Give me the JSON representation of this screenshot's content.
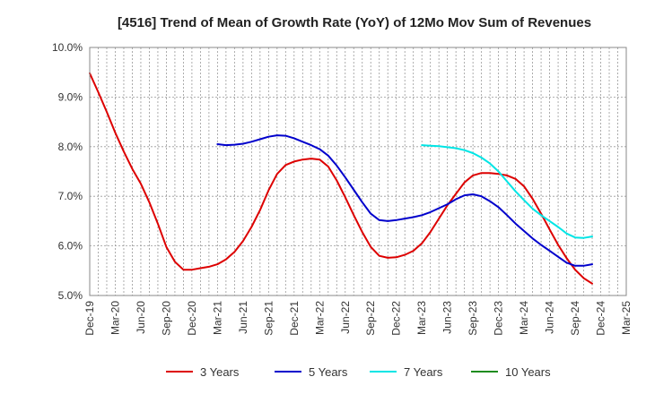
{
  "chart_data": {
    "type": "line",
    "title": "[4516]  Trend of Mean of Growth Rate (YoY) of 12Mo Mov Sum of Revenues",
    "xlabel": "",
    "ylabel": "",
    "ylim": [
      5.0,
      10.0
    ],
    "y_ticks": [
      5.0,
      6.0,
      7.0,
      8.0,
      9.0,
      10.0
    ],
    "y_tick_labels": [
      "5.0%",
      "6.0%",
      "7.0%",
      "8.0%",
      "9.0%",
      "10.0%"
    ],
    "x_tick_labels": [
      "Dec-19",
      "Mar-20",
      "Jun-20",
      "Sep-20",
      "Dec-20",
      "Mar-21",
      "Jun-21",
      "Sep-21",
      "Dec-21",
      "Mar-22",
      "Jun-22",
      "Sep-22",
      "Dec-22",
      "Mar-23",
      "Jun-23",
      "Sep-23",
      "Dec-23",
      "Mar-24",
      "Jun-24",
      "Sep-24",
      "Dec-24",
      "Mar-25"
    ],
    "grid": true,
    "legend_position": "bottom",
    "series": [
      {
        "name": "3 Years",
        "color": "#dd0000",
        "start_month_index": 0,
        "values": [
          9.48,
          9.1,
          8.7,
          8.28,
          7.9,
          7.55,
          7.25,
          6.88,
          6.45,
          5.98,
          5.68,
          5.52,
          5.52,
          5.55,
          5.58,
          5.63,
          5.73,
          5.88,
          6.1,
          6.38,
          6.72,
          7.12,
          7.45,
          7.63,
          7.7,
          7.74,
          7.76,
          7.74,
          7.6,
          7.32,
          6.98,
          6.62,
          6.28,
          5.98,
          5.8,
          5.76,
          5.77,
          5.82,
          5.9,
          6.05,
          6.28,
          6.55,
          6.82,
          7.05,
          7.28,
          7.42,
          7.47,
          7.47,
          7.45,
          7.42,
          7.35,
          7.2,
          6.95,
          6.65,
          6.33,
          6.02,
          5.75,
          5.52,
          5.35,
          5.24
        ]
      },
      {
        "name": "5 Years",
        "color": "#0000cc",
        "start_month_index": 15,
        "values": [
          8.05,
          8.03,
          8.04,
          8.06,
          8.1,
          8.15,
          8.2,
          8.23,
          8.22,
          8.17,
          8.1,
          8.03,
          7.95,
          7.82,
          7.62,
          7.38,
          7.13,
          6.88,
          6.65,
          6.52,
          6.5,
          6.52,
          6.55,
          6.58,
          6.62,
          6.68,
          6.76,
          6.84,
          6.94,
          7.02,
          7.04,
          7.0,
          6.9,
          6.78,
          6.62,
          6.45,
          6.3,
          6.15,
          6.02,
          5.9,
          5.78,
          5.66,
          5.6,
          5.6,
          5.63
        ]
      },
      {
        "name": "7 Years",
        "color": "#00e5e5",
        "start_month_index": 39,
        "values": [
          8.03,
          8.02,
          8.01,
          7.99,
          7.97,
          7.93,
          7.87,
          7.78,
          7.66,
          7.5,
          7.3,
          7.1,
          6.92,
          6.75,
          6.62,
          6.5,
          6.38,
          6.25,
          6.17,
          6.16,
          6.19
        ]
      },
      {
        "name": "10 Years",
        "color": "#1e8c1e",
        "start_month_index": 0,
        "values": []
      }
    ]
  }
}
